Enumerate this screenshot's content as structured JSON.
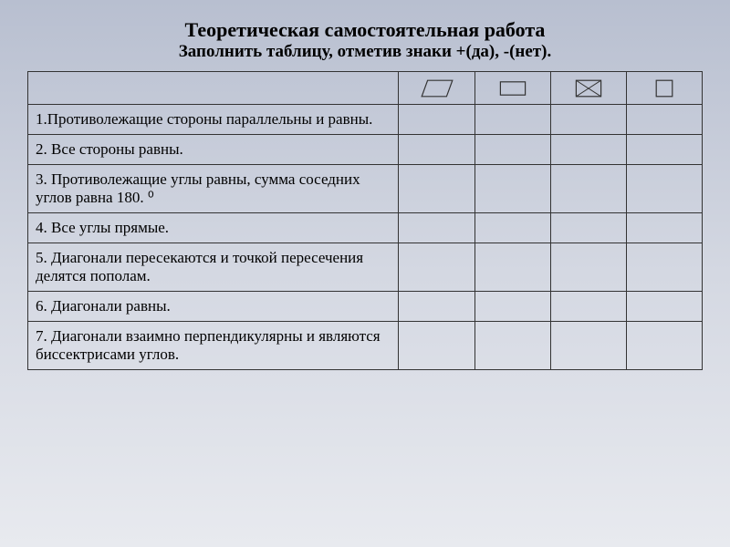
{
  "title": {
    "main": "Теоретическая самостоятельная работа",
    "sub": "Заполнить таблицу, отметив знаки +(да), -(нет)."
  },
  "shapes": [
    {
      "name": "parallelogram",
      "svg": "<svg viewBox='0 0 50 34' class='shape-svg'><polygon points='12,6 46,6 38,28 4,28' fill='none' stroke='#333' stroke-width='1.5'/></svg>"
    },
    {
      "name": "rectangle",
      "svg": "<svg viewBox='0 0 50 34' class='shape-svg'><rect x='8' y='8' width='34' height='18' fill='none' stroke='#333' stroke-width='1.5'/></svg>"
    },
    {
      "name": "rect-with-diagonals",
      "svg": "<svg viewBox='0 0 50 34' class='shape-svg'><rect x='8' y='6' width='34' height='22' fill='none' stroke='#333' stroke-width='1.5'/><line x1='8' y1='6' x2='42' y2='28' stroke='#333' stroke-width='1.2'/><line x1='42' y1='6' x2='8' y2='28' stroke='#333' stroke-width='1.2'/></svg>"
    },
    {
      "name": "square",
      "svg": "<svg viewBox='0 0 50 34' class='shape-svg'><rect x='14' y='6' width='22' height='22' fill='none' stroke='#333' stroke-width='1.5'/></svg>"
    }
  ],
  "rows": [
    {
      "text": "1.Противолежащие стороны параллельны и равны."
    },
    {
      "text": "2. Все стороны равны."
    },
    {
      "text": "3. Противолежащие углы равны, сумма соседних углов равна 180. ⁰"
    },
    {
      "text": "4. Все углы прямые."
    },
    {
      "text": "5. Диагонали пересекаются и точкой пересечения делятся пополам."
    },
    {
      "text": "6. Диагонали равны."
    },
    {
      "text": "7. Диагонали взаимно перпендикулярны и являются биссектрисами углов."
    }
  ],
  "colors": {
    "text": "#000000",
    "border": "#333333"
  }
}
